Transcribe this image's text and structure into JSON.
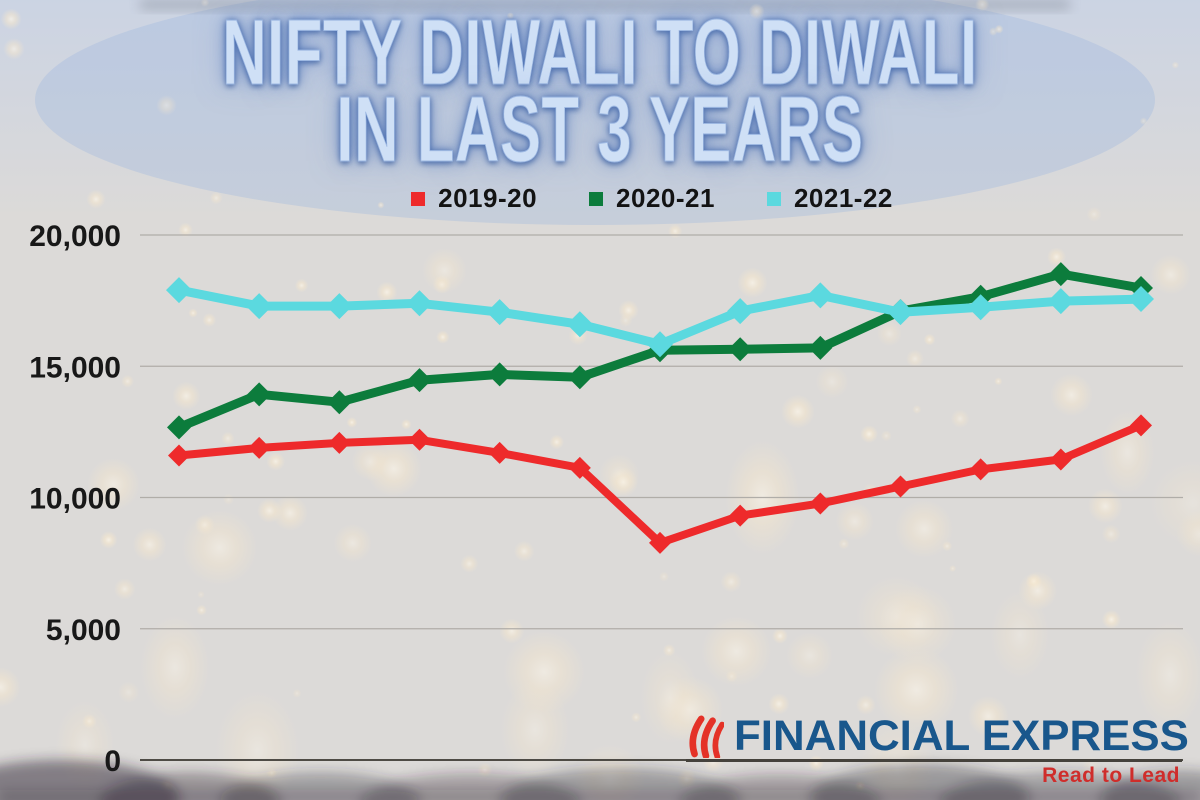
{
  "title": {
    "line1": "NIFTY DIWALI TO DIWALI",
    "line2": "IN LAST 3 YEARS"
  },
  "chart_data": {
    "type": "line",
    "x": [
      1,
      2,
      3,
      4,
      5,
      6,
      7,
      8,
      9,
      10,
      11,
      12,
      13
    ],
    "x_axis_labels_visible": false,
    "series": [
      {
        "name": "2019-20",
        "color": "#ee2a2b",
        "values": [
          11600,
          11890,
          12080,
          12200,
          11700,
          11130,
          8270,
          9310,
          9770,
          10420,
          11070,
          11450,
          12750
        ]
      },
      {
        "name": "2020-21",
        "color": "#0c7c3c",
        "values": [
          12670,
          13930,
          13630,
          14470,
          14690,
          14580,
          15610,
          15650,
          15700,
          17100,
          17650,
          18510,
          17980
        ]
      },
      {
        "name": "2021-22",
        "color": "#5bd9df",
        "values": [
          17900,
          17290,
          17290,
          17400,
          17060,
          16600,
          15840,
          17100,
          17700,
          17060,
          17250,
          17480,
          17560
        ]
      }
    ],
    "ylim": [
      0,
      20000
    ],
    "yticks": [
      20000,
      15000,
      10000,
      5000,
      0
    ],
    "ytick_labels": [
      "20,000",
      "15,000",
      "10,000",
      "5,000",
      "0"
    ],
    "grid": true,
    "legend_position": "top"
  },
  "logo": {
    "brand": "FINANCIAL EXPRESS",
    "tagline": "Read to Lead",
    "brand_color": "#19578c",
    "tagline_color": "#cf2d2b",
    "flame_color": "#e43227",
    "rule_color": "#45423c"
  },
  "colors": {
    "background": "#dcdad8",
    "axis_label": "#181818",
    "gridline": "#b0ada8",
    "zero_line": "#4e4b45",
    "title_fill": "#cfe0f6",
    "title_glow": "#5a7dbe",
    "lantern_glow": "#f6e7cd",
    "crowd": "#2c2633"
  }
}
